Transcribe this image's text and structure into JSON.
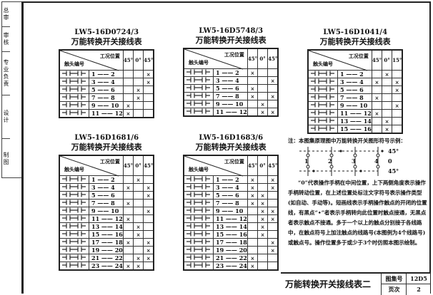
{
  "sidebar": {
    "items": [
      "总审",
      "审核",
      "专业负责",
      "设计",
      "制图"
    ]
  },
  "header_labels": {
    "position": "工况位置",
    "contact": "触头编号"
  },
  "tables": [
    {
      "model": "LW5-16D0724/3",
      "caption": "万能转换开关接线表",
      "positions": [
        "45°",
        "0°",
        "45°"
      ],
      "rows": [
        [
          "1",
          "2"
        ],
        [
          "3",
          "4"
        ],
        [
          "5",
          "6"
        ],
        [
          "7",
          "8"
        ],
        [
          "9",
          "10"
        ],
        [
          "11",
          "12"
        ]
      ],
      "marks": [
        [
          0,
          0,
          1
        ],
        [
          0,
          0,
          1
        ],
        [
          0,
          1,
          0
        ],
        [
          0,
          1,
          0
        ],
        [
          1,
          0,
          0
        ],
        [
          1,
          0,
          0
        ]
      ]
    },
    {
      "model": "LW5-16D5748/3",
      "caption": "万能转换开关接线表",
      "positions": [
        "45°",
        "0°",
        "45°"
      ],
      "rows": [
        [
          "1",
          "2"
        ],
        [
          "3",
          "4"
        ],
        [
          "5",
          "6"
        ],
        [
          "7",
          "8"
        ],
        [
          "9",
          "10"
        ],
        [
          "11",
          "12"
        ]
      ],
      "marks": [
        [
          1,
          0,
          0
        ],
        [
          0,
          0,
          1
        ],
        [
          1,
          0,
          0
        ],
        [
          1,
          0,
          1
        ],
        [
          0,
          1,
          0
        ],
        [
          0,
          1,
          1
        ]
      ]
    },
    {
      "model": "LW5-16D1041/4",
      "caption": "万能转换开关接线表",
      "positions": [
        "45°",
        "0°",
        "15°"
      ],
      "rows": [
        [
          "1",
          "2"
        ],
        [
          "3",
          "4"
        ],
        [
          "5",
          "6"
        ],
        [
          "7",
          "8"
        ],
        [
          "9",
          "10"
        ],
        [
          "11",
          "12"
        ],
        [
          "13",
          "14"
        ],
        [
          "15",
          "16"
        ]
      ],
      "marks": [
        [
          0,
          1,
          0
        ],
        [
          1,
          0,
          1
        ],
        [
          0,
          0,
          1
        ],
        [
          1,
          0,
          0
        ],
        [
          0,
          0,
          1
        ],
        [
          1,
          0,
          0
        ],
        [
          0,
          1,
          0
        ],
        [
          0,
          1,
          0
        ]
      ]
    },
    {
      "model": "LW5-16D1681/6",
      "caption": "万能转换开关接线表",
      "positions": [
        "45°",
        "0°",
        "45°"
      ],
      "rows": [
        [
          "1",
          "2"
        ],
        [
          "3",
          "4"
        ],
        [
          "5",
          "6"
        ],
        [
          "7",
          "8"
        ],
        [
          "9",
          "10"
        ],
        [
          "11",
          "12"
        ],
        [
          "13",
          "14"
        ],
        [
          "15",
          "16"
        ],
        [
          "17",
          "18"
        ],
        [
          "19",
          "20"
        ],
        [
          "21",
          "22"
        ],
        [
          "23",
          "24"
        ]
      ],
      "marks": [
        [
          0,
          1,
          0
        ],
        [
          1,
          0,
          1
        ],
        [
          0,
          0,
          1
        ],
        [
          1,
          0,
          0
        ],
        [
          0,
          0,
          1
        ],
        [
          1,
          0,
          0
        ],
        [
          0,
          1,
          0
        ],
        [
          0,
          1,
          0
        ],
        [
          1,
          0,
          1
        ],
        [
          0,
          0,
          1
        ],
        [
          0,
          1,
          1
        ],
        [
          1,
          1,
          0
        ]
      ]
    },
    {
      "model": "LW5-16D1683/6",
      "caption": "万能转换开关接线表",
      "positions": [
        "45°",
        "0°",
        "45°"
      ],
      "rows": [
        [
          "1",
          "2"
        ],
        [
          "3",
          "4"
        ],
        [
          "5",
          "6"
        ],
        [
          "7",
          "8"
        ],
        [
          "9",
          "10"
        ],
        [
          "11",
          "12"
        ],
        [
          "13",
          "14"
        ],
        [
          "15",
          "16"
        ],
        [
          "17",
          "18"
        ],
        [
          "19",
          "20"
        ],
        [
          "21",
          "22"
        ],
        [
          "23",
          "24"
        ]
      ],
      "marks": [
        [
          1,
          0,
          1
        ],
        [
          1,
          0,
          1
        ],
        [
          1,
          1,
          0
        ],
        [
          1,
          1,
          0
        ],
        [
          0,
          1,
          1
        ],
        [
          0,
          1,
          1
        ],
        [
          0,
          1,
          0
        ],
        [
          0,
          1,
          0
        ],
        [
          0,
          0,
          1
        ],
        [
          0,
          0,
          1
        ],
        [
          1,
          0,
          0
        ],
        [
          1,
          0,
          0
        ]
      ]
    }
  ],
  "mark_symbol": "×",
  "note": {
    "heading": "注：本图集原理图中万能转换开关图形符号示例：",
    "diagram": {
      "lines": [
        "1",
        "2",
        "3",
        "4"
      ],
      "levels": [
        "45°",
        "0",
        "45°"
      ]
    },
    "body": "“0”代表操作手柄在中间位置，上下两侧角度表示操作手柄转动位置，在上述位置处标注文字符号表示操作类型(如自动、手动等)。短画线表示手柄操作触点的开闭的位置线，有黑点“•”者表示手柄转向此位置时触点接通，无黑点者表示触点不接通。多于一个以上的触点分别接于各线路中，在触点符号上加注触点的线路号(本图例为4个线路号)或触点号。操作位置多于或少于3个时仿照本图示绘制。"
  },
  "title_block": {
    "title": "万能转换开关接线表二",
    "atlas_label": "图集号",
    "atlas_no": "12D5",
    "page_label": "页次",
    "page_no": "2"
  }
}
